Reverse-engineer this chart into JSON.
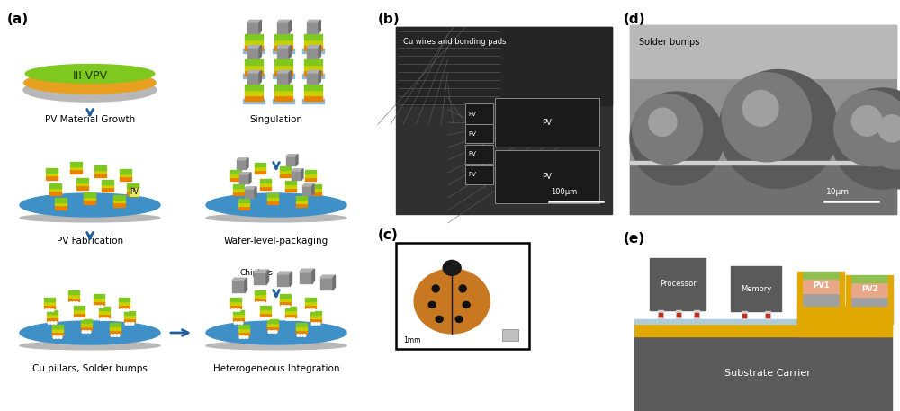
{
  "fig_width": 10.0,
  "fig_height": 4.57,
  "bg_color": "#ffffff",
  "colors": {
    "wafer_green": "#7ec820",
    "wafer_orange": "#e8a020",
    "wafer_gray": "#b8b8b8",
    "wafer_blue": "#4090c8",
    "chip_green_top": "#7ec820",
    "chip_yellow_mid": "#c8d000",
    "chip_orange_bot": "#e88000",
    "chiplet_light": "#b0b0b0",
    "chiplet_mid": "#909090",
    "chiplet_dark": "#707070",
    "arrow_blue": "#1e5fa0",
    "sem_dark": "#282828",
    "sem_medium": "#484848",
    "sem_bright": "#787878",
    "substrate_gold": "#e0a800",
    "substrate_dark": "#5a5a5a",
    "processor_gray": "#5a5a5a",
    "pv_salmon": "#e8a888",
    "pv_green": "#90c050",
    "pv_gray": "#a0a0a0",
    "solder_red": "#c03020",
    "interconnect_blue": "#b0ccd8",
    "platform_gold": "#e0a800"
  },
  "panel_b_label": "Cu wires and bonding pads",
  "panel_b_scale": "100μm",
  "panel_d_label": "Solder bumps",
  "panel_d_scale": "10μm",
  "panel_e_labels": [
    "Processor",
    "Memory",
    "PV1",
    "PV2",
    "Substrate Carrier"
  ]
}
